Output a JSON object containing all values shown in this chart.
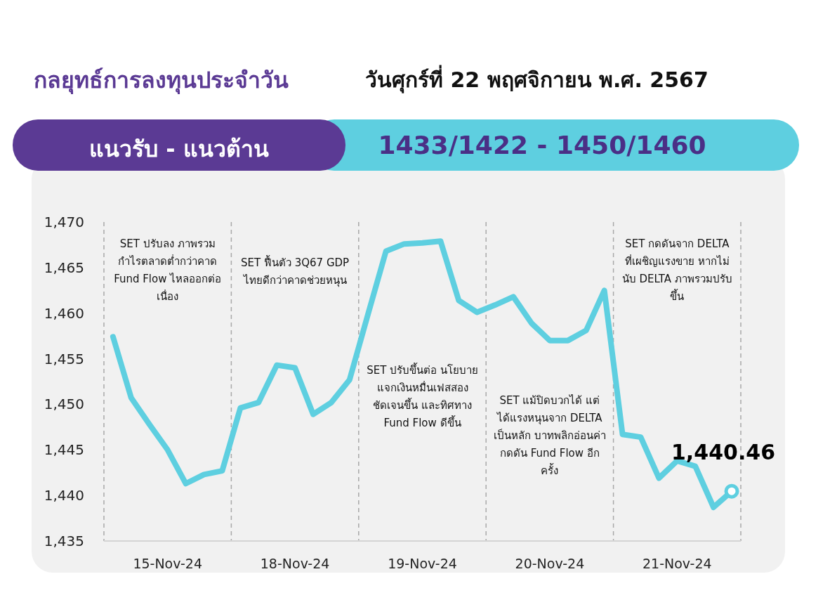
{
  "chart_data": {
    "type": "line",
    "title": "กลยุทธ์การลงทุนประจำวัน",
    "subtitle": "วันศุกร์ที่ 22 พฤศจิกายน พ.ศ. 2567",
    "annotations": [
      "แนวรับ - แนวต้าน",
      "1433/1422 - 1450/1460",
      "SET ปรับลง ภาพรวมกำไรตลาดต่ำกว่าคาด Fund Flow ไหลออกต่อเนื่อง",
      "SET ฟื้นตัว 3Q67 GDP ไทยดีกว่าคาดช่วยหนุน",
      "SET ปรับขึ้นต่อ นโยบายแจกเงินหมื่นเฟสสองชัดเจนขึ้น และทิศทาง Fund Flow ดีขึ้น",
      "SET แม้ปิดบวกได้ แต่ได้แรงหนุนจาก DELTA เป็นหลัก บาทพลิกอ่อนค่ากดดัน Fund Flow อีกครั้ง",
      "SET กดดันจาก DELTA ที่เผชิญแรงขาย หากไม่นับ DELTA ภาพรวมปรับขึ้น"
    ],
    "categories": [
      null,
      null,
      null,
      "15-Nov-24",
      null,
      null,
      null,
      null,
      null,
      null,
      "18-Nov-24",
      null,
      null,
      null,
      null,
      null,
      null,
      "19-Nov-24",
      null,
      null,
      null,
      null,
      null,
      null,
      "20-Nov-24",
      null,
      null,
      null,
      null,
      null,
      null,
      "21-Nov-24",
      null,
      null,
      null
    ],
    "series": [
      {
        "color": "#5ecfe0",
        "values": [
          1457.4,
          1450.7,
          1447.8,
          1445.0,
          1441.3,
          1442.3,
          1442.7,
          1449.6,
          1450.2,
          1454.3,
          1454.0,
          1448.9,
          1450.2,
          1452.7,
          1459.8,
          1466.8,
          1467.6,
          1467.7,
          1467.9,
          1461.4,
          1460.1,
          1460.9,
          1461.8,
          1458.9,
          1457.0,
          1457.0,
          1458.1,
          1462.5,
          1446.7,
          1446.4,
          1441.9,
          1443.8,
          1443.2,
          1438.7,
          1440.46
        ],
        "value_labels": [
          null,
          null,
          null,
          null,
          null,
          null,
          null,
          null,
          null,
          null,
          null,
          null,
          null,
          null,
          null,
          null,
          null,
          null,
          null,
          null,
          null,
          null,
          null,
          null,
          null,
          null,
          null,
          null,
          null,
          null,
          null,
          null,
          null,
          null,
          "1,440.46"
        ]
      }
    ],
    "ylim": [
      1435,
      1470
    ],
    "yticks": [
      {
        "value": 1435,
        "label": "1,435"
      },
      {
        "value": 1440,
        "label": "1,440"
      },
      {
        "value": 1445,
        "label": "1,445"
      },
      {
        "value": 1450,
        "label": "1,450"
      },
      {
        "value": 1455,
        "label": "1,455"
      },
      {
        "value": 1460,
        "label": "1,460"
      },
      {
        "value": 1465,
        "label": "1,465"
      },
      {
        "value": 1470,
        "label": "1,470"
      }
    ],
    "line_style": "solid",
    "grid": false
  }
}
